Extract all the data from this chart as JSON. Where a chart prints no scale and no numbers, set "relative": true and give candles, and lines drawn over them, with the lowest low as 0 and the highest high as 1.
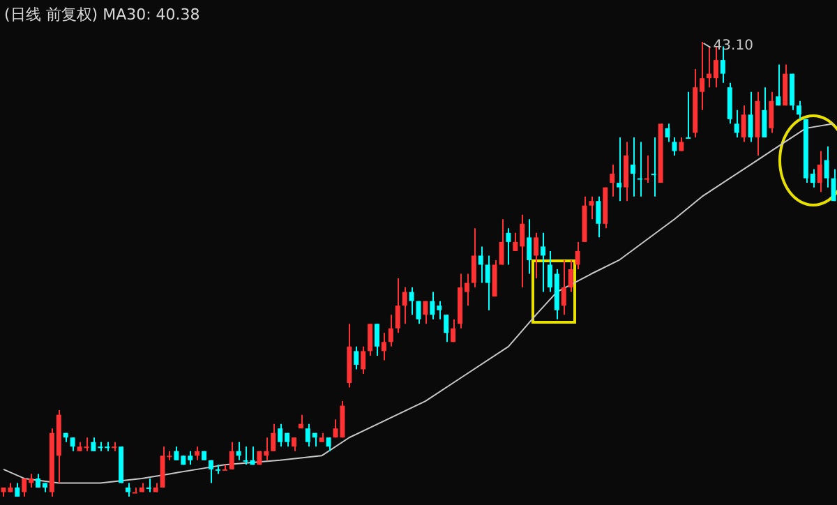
{
  "chart_data": {
    "type": "candlestick",
    "title": "(日线 前复权) MA30: 40.38",
    "relative": true,
    "categories": [
      null,
      null,
      null,
      null,
      null,
      null,
      null,
      null,
      null,
      null,
      null,
      null,
      null,
      null,
      null,
      null,
      null,
      null,
      null,
      null,
      null,
      null,
      null,
      null,
      null,
      null,
      null,
      null,
      null,
      null,
      null,
      null,
      null,
      null,
      null,
      null,
      null,
      null,
      null,
      null,
      null,
      null,
      null,
      null,
      null,
      null,
      null,
      null,
      null,
      null,
      null,
      null,
      null,
      null,
      null,
      null,
      null,
      null,
      null,
      null,
      null,
      null,
      null,
      null,
      null,
      null,
      null,
      null,
      null,
      null,
      null,
      null,
      null,
      null,
      null,
      null,
      null,
      null,
      null,
      null,
      null,
      null,
      null,
      null,
      null,
      null,
      null,
      null,
      null,
      null,
      null,
      null,
      null,
      null,
      null,
      null,
      null,
      null,
      null,
      null,
      null,
      null,
      null,
      null,
      null,
      null,
      null,
      null,
      null,
      null,
      null,
      null,
      null,
      null,
      null,
      null,
      null,
      null,
      null,
      null,
      null
    ],
    "ohlc": [
      [
        0.01,
        0.02,
        0,
        0.02
      ],
      [
        0.01,
        0.03,
        0.01,
        0.02
      ],
      [
        0.02,
        0.03,
        0,
        0.0
      ],
      [
        0.01,
        0.04,
        0.0,
        0.04
      ],
      [
        0.03,
        0.05,
        0.02,
        0.04
      ],
      [
        0.04,
        0.05,
        0.02,
        0.02
      ],
      [
        0.03,
        0.03,
        0.01,
        0.02
      ],
      [
        0.01,
        0.15,
        0.0,
        0.14
      ],
      [
        0.09,
        0.19,
        0.03,
        0.18
      ],
      [
        0.14,
        0.14,
        0.12,
        0.13
      ],
      [
        0.13,
        0.13,
        0.1,
        0.11
      ],
      [
        0.1,
        0.12,
        0.1,
        0.11
      ],
      [
        0.11,
        0.13,
        0.1,
        0.11
      ],
      [
        0.12,
        0.13,
        0.1,
        0.1
      ],
      [
        0.11,
        0.12,
        0.1,
        0.11
      ],
      [
        0.11,
        0.12,
        0.1,
        0.11
      ],
      [
        0.11,
        0.12,
        0.1,
        0.11
      ],
      [
        0.11,
        0.11,
        0.03,
        0.03
      ],
      [
        0.02,
        0.03,
        0.0,
        0.01
      ],
      [
        0.01,
        0.02,
        0.01,
        0.01
      ],
      [
        0.01,
        0.03,
        0.01,
        0.02
      ],
      [
        0.02,
        0.04,
        0.01,
        0.02
      ],
      [
        0.01,
        0.03,
        0.01,
        0.02
      ],
      [
        0.02,
        0.11,
        0.02,
        0.09
      ],
      [
        0.09,
        0.1,
        0.08,
        0.09
      ],
      [
        0.1,
        0.11,
        0.08,
        0.08
      ],
      [
        0.09,
        0.09,
        0.07,
        0.07
      ],
      [
        0.09,
        0.1,
        0.07,
        0.08
      ],
      [
        0.09,
        0.11,
        0.08,
        0.1
      ],
      [
        0.1,
        0.1,
        0.08,
        0.08
      ],
      [
        0.08,
        0.08,
        0.03,
        0.06
      ],
      [
        0.06,
        0.07,
        0.05,
        0.06
      ],
      [
        0.06,
        0.07,
        0.06,
        0.06
      ],
      [
        0.06,
        0.12,
        0.06,
        0.1
      ],
      [
        0.1,
        0.12,
        0.08,
        0.09
      ],
      [
        0.08,
        0.11,
        0.07,
        0.08
      ],
      [
        0.08,
        0.11,
        0.07,
        0.07
      ],
      [
        0.07,
        0.1,
        0.07,
        0.1
      ],
      [
        0.09,
        0.13,
        0.08,
        0.1
      ],
      [
        0.1,
        0.16,
        0.1,
        0.14
      ],
      [
        0.15,
        0.16,
        0.11,
        0.12
      ],
      [
        0.14,
        0.14,
        0.11,
        0.12
      ],
      [
        0.11,
        0.13,
        0.1,
        0.13
      ],
      [
        0.15,
        0.18,
        0.15,
        0.16
      ],
      [
        0.15,
        0.16,
        0.11,
        0.12
      ],
      [
        0.14,
        0.14,
        0.11,
        0.13
      ],
      [
        0.12,
        0.14,
        0.12,
        0.13
      ],
      [
        0.13,
        0.13,
        0.1,
        0.11
      ],
      [
        0.13,
        0.17,
        0.13,
        0.15
      ],
      [
        0.13,
        0.21,
        0.13,
        0.2
      ],
      [
        0.25,
        0.38,
        0.24,
        0.33
      ],
      [
        0.32,
        0.33,
        0.28,
        0.29
      ],
      [
        0.28,
        0.33,
        0.27,
        0.32
      ],
      [
        0.32,
        0.38,
        0.31,
        0.38
      ],
      [
        0.38,
        0.38,
        0.31,
        0.33
      ],
      [
        0.32,
        0.36,
        0.3,
        0.34
      ],
      [
        0.34,
        0.4,
        0.33,
        0.37
      ],
      [
        0.37,
        0.48,
        0.36,
        0.42
      ],
      [
        0.42,
        0.46,
        0.38,
        0.45
      ],
      [
        0.45,
        0.46,
        0.4,
        0.43
      ],
      [
        0.43,
        0.43,
        0.38,
        0.39
      ],
      [
        0.4,
        0.43,
        0.38,
        0.43
      ],
      [
        0.43,
        0.45,
        0.39,
        0.4
      ],
      [
        0.42,
        0.43,
        0.39,
        0.41
      ],
      [
        0.4,
        0.4,
        0.34,
        0.36
      ],
      [
        0.34,
        0.39,
        0.34,
        0.37
      ],
      [
        0.38,
        0.49,
        0.37,
        0.46
      ],
      [
        0.45,
        0.49,
        0.42,
        0.47
      ],
      [
        0.47,
        0.59,
        0.46,
        0.53
      ],
      [
        0.53,
        0.55,
        0.47,
        0.51
      ],
      [
        0.51,
        0.53,
        0.41,
        0.47
      ],
      [
        0.44,
        0.52,
        0.44,
        0.51
      ],
      [
        0.51,
        0.61,
        0.51,
        0.56
      ],
      [
        0.58,
        0.59,
        0.51,
        0.56
      ],
      [
        0.54,
        0.58,
        0.54,
        0.56
      ],
      [
        0.55,
        0.62,
        0.46,
        0.6
      ],
      [
        0.57,
        0.61,
        0.49,
        0.52
      ],
      [
        0.53,
        0.58,
        0.48,
        0.57
      ],
      [
        0.55,
        0.58,
        0.45,
        0.53
      ],
      [
        0.51,
        0.54,
        0.45,
        0.46
      ],
      [
        0.49,
        0.5,
        0.39,
        0.41
      ],
      [
        0.42,
        0.52,
        0.4,
        0.46
      ],
      [
        0.46,
        0.52,
        0.45,
        0.5
      ],
      [
        0.51,
        0.56,
        0.5,
        0.54
      ],
      [
        0.56,
        0.66,
        0.56,
        0.64
      ],
      [
        0.64,
        0.66,
        0.61,
        0.65
      ],
      [
        0.65,
        0.66,
        0.57,
        0.6
      ],
      [
        0.6,
        0.68,
        0.59,
        0.68
      ],
      [
        0.69,
        0.73,
        0.66,
        0.71
      ],
      [
        0.69,
        0.79,
        0.65,
        0.68
      ],
      [
        0.68,
        0.78,
        0.65,
        0.75
      ],
      [
        0.73,
        0.79,
        0.66,
        0.71
      ],
      [
        0.7,
        0.78,
        0.66,
        0.7
      ],
      [
        0.7,
        0.75,
        0.69,
        0.7
      ],
      [
        0.71,
        0.79,
        0.66,
        0.71
      ],
      [
        0.69,
        0.82,
        0.69,
        0.82
      ],
      [
        0.81,
        0.82,
        0.78,
        0.79
      ],
      [
        0.78,
        0.79,
        0.75,
        0.76
      ],
      [
        0.76,
        0.79,
        0.76,
        0.78
      ],
      [
        0.79,
        0.89,
        0.79,
        0.79
      ],
      [
        0.8,
        0.94,
        0.79,
        0.9
      ],
      [
        0.89,
        1,
        0.85,
        0.92
      ],
      [
        0.92,
        0.99,
        0.9,
        0.93
      ],
      [
        0.92,
        0.99,
        0.9,
        0.96
      ],
      [
        0.96,
        0.99,
        0.91,
        0.93
      ],
      [
        0.9,
        0.91,
        0.82,
        0.83
      ],
      [
        0.82,
        0.85,
        0.79,
        0.8
      ],
      [
        0.79,
        0.86,
        0.78,
        0.84
      ],
      [
        0.84,
        0.89,
        0.78,
        0.79
      ],
      [
        0.79,
        0.89,
        0.75,
        0.87
      ],
      [
        0.85,
        0.9,
        0.79,
        0.79
      ],
      [
        0.81,
        0.89,
        0.8,
        0.87
      ],
      [
        0.88,
        0.95,
        0.86,
        0.86
      ],
      [
        0.86,
        0.95,
        0.86,
        0.93
      ],
      [
        0.93,
        0.93,
        0.85,
        0.86
      ],
      [
        0.86,
        0.87,
        0.83,
        0.84
      ],
      [
        0.83,
        0.83,
        0.69,
        0.7
      ],
      [
        0.71,
        0.72,
        0.68,
        0.69
      ],
      [
        0.69,
        0.76,
        0.67,
        0.73
      ],
      [
        0.74,
        0.77,
        0.68,
        0.7
      ],
      [
        0.7,
        0.72,
        0.65,
        0.65
      ]
    ],
    "colors": [
      "#ff3333",
      "#ff3333",
      "#00ffff",
      "#ff3333",
      "#ff3333",
      "#00ffff",
      "#00ffff",
      "#ff3333",
      "#ff3333",
      "#00ffff",
      "#00ffff",
      "#ff3333",
      "#ff3333",
      "#00ffff",
      "#00ffff",
      "#00ffff",
      "#ff3333",
      "#00ffff",
      "#00ffff",
      "#ff3333",
      "#ff3333",
      "#00ffff",
      "#ff3333",
      "#ff3333",
      "#ff3333",
      "#00ffff",
      "#00ffff",
      "#00ffff",
      "#ff3333",
      "#00ffff",
      "#00ffff",
      "#00ffff",
      "#ff3333",
      "#ff3333",
      "#00ffff",
      "#00ffff",
      "#00ffff",
      "#ff3333",
      "#ff3333",
      "#ff3333",
      "#00ffff",
      "#00ffff",
      "#ff3333",
      "#ff3333",
      "#00ffff",
      "#00ffff",
      "#ff3333",
      "#00ffff",
      "#ff3333",
      "#ff3333",
      "#ff3333",
      "#00ffff",
      "#ff3333",
      "#ff3333",
      "#00ffff",
      "#ff3333",
      "#ff3333",
      "#ff3333",
      "#ff3333",
      "#00ffff",
      "#00ffff",
      "#ff3333",
      "#00ffff",
      "#00ffff",
      "#00ffff",
      "#ff3333",
      "#ff3333",
      "#ff3333",
      "#ff3333",
      "#00ffff",
      "#00ffff",
      "#ff3333",
      "#ff3333",
      "#00ffff",
      "#ff3333",
      "#ff3333",
      "#00ffff",
      "#ff3333",
      "#00ffff",
      "#00ffff",
      "#00ffff",
      "#ff3333",
      "#ff3333",
      "#ff3333",
      "#ff3333",
      "#ff3333",
      "#00ffff",
      "#ff3333",
      "#ff3333",
      "#00ffff",
      "#ff3333",
      "#00ffff",
      "#00ffff",
      "#ff3333",
      "#00ffff",
      "#ff3333",
      "#00ffff",
      "#00ffff",
      "#ff3333",
      "#00ffff",
      "#ff3333",
      "#ff3333",
      "#ff3333",
      "#ff3333",
      "#00ffff",
      "#00ffff",
      "#00ffff",
      "#ff3333",
      "#00ffff",
      "#ff3333",
      "#00ffff",
      "#ff3333",
      "#00ffff",
      "#ff3333",
      "#00ffff",
      "#00ffff",
      "#00ffff",
      "#00ffff",
      "#ff3333",
      "#00ffff",
      "#00ffff"
    ],
    "series": [
      {
        "type": "line",
        "color": "#c8c8c8",
        "values": [
          0.06,
          null,
          null,
          0.04,
          null,
          null,
          null,
          null,
          0.03,
          null,
          null,
          null,
          null,
          null,
          0.03,
          null,
          null,
          null,
          null,
          null,
          0.04,
          null,
          null,
          null,
          0.05,
          null,
          null,
          null,
          0.06,
          null,
          null,
          null,
          0.07,
          null,
          null,
          null,
          null,
          null,
          null,
          null,
          0.08,
          null,
          null,
          null,
          null,
          null,
          0.09,
          null,
          null,
          null,
          0.13,
          null,
          null,
          null,
          null,
          null,
          null,
          null,
          null,
          null,
          null,
          0.21,
          null,
          null,
          null,
          null,
          0.26,
          null,
          null,
          null,
          null,
          null,
          null,
          0.33,
          null,
          null,
          null,
          0.4,
          null,
          null,
          0.45,
          null,
          null,
          null,
          null,
          0.49,
          null,
          null,
          null,
          0.52,
          null,
          null,
          null,
          null,
          null,
          null,
          null,
          0.61,
          null,
          null,
          null,
          0.66,
          null,
          null,
          null,
          null,
          null,
          null,
          0.73,
          null,
          null,
          null,
          0.77,
          null,
          null,
          null,
          0.81,
          null,
          null,
          null,
          0.82
        ]
      }
    ],
    "annotations": [
      "43.10"
    ]
  }
}
